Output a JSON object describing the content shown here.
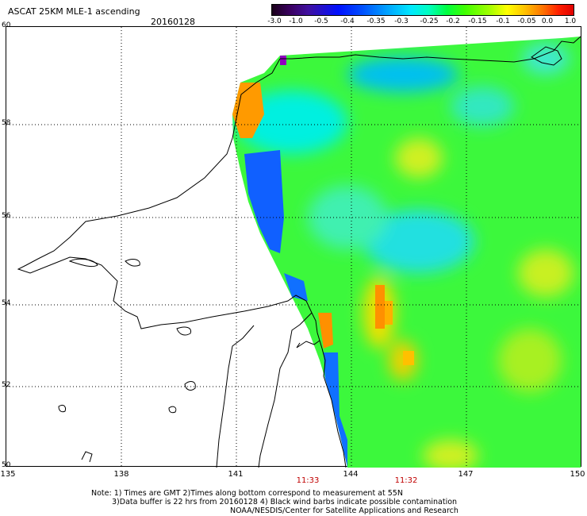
{
  "header": {
    "title": "ASCAT 25KM MLE-1 ascending",
    "date": "20160128"
  },
  "colorbar": {
    "labels": [
      "-3.0",
      "-1.0",
      "-0.5",
      "-0.4",
      "-0.35",
      "-0.3",
      "-0.25",
      "-0.2",
      "-0.15",
      "-0.1",
      "-0.05",
      "0.0",
      "1.0"
    ]
  },
  "axes": {
    "lat_labels": [
      "60",
      "58",
      "56",
      "54",
      "52",
      "50"
    ],
    "lon_labels": [
      "135",
      "138",
      "141",
      "144",
      "147",
      "150"
    ]
  },
  "pass_times": [
    "11:33",
    "11:32"
  ],
  "notes": {
    "line1": "Note: 1) Times are GMT 2)Times along bottom correspond to measurement at 55N",
    "line2": "3)Data buffer is 22 hrs from 20160128 4) Black wind barbs indicate possible contamination",
    "line3": "NOAA/NESDIS/Center for Satellite Applications and Research"
  },
  "colors": {
    "dominant_field": "#40ff40",
    "low_values": "#0060ff",
    "high_values": "#ff8000"
  }
}
